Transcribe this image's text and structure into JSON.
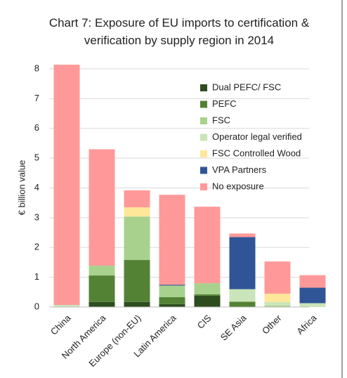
{
  "chart_data": {
    "type": "stacked_bar",
    "title": "Chart 7: Exposure of EU imports to certification & verification by supply region in 2014",
    "ylabel": "€ billion value",
    "categories": [
      "China",
      "North America",
      "Europe (non-EU)",
      "Latin America",
      "CIS",
      "SE Asia",
      "Other",
      "Africa"
    ],
    "series": [
      {
        "name": "Dual PEFC/ FSC",
        "color": "#2e4d1f",
        "values": [
          0,
          0.17,
          0.17,
          0.1,
          0.38,
          0,
          0,
          0
        ]
      },
      {
        "name": "PEFC",
        "color": "#548235",
        "values": [
          0,
          0.89,
          1.41,
          0.23,
          0.05,
          0.18,
          0,
          0
        ]
      },
      {
        "name": "FSC",
        "color": "#a9d18e",
        "values": [
          0,
          0.33,
          1.46,
          0.39,
          0.37,
          0,
          0.05,
          0
        ]
      },
      {
        "name": "Operator legal verified",
        "color": "#c9e5b9",
        "values": [
          0.07,
          0,
          0,
          0,
          0,
          0.42,
          0.12,
          0.13
        ]
      },
      {
        "name": "FSC Controlled Wood",
        "color": "#ffe699",
        "values": [
          0,
          0,
          0.31,
          0,
          0,
          0,
          0.28,
          0
        ]
      },
      {
        "name": "VPA Partners",
        "color": "#2f5597",
        "values": [
          0,
          0,
          0,
          0.03,
          0,
          1.75,
          0,
          0.52
        ]
      },
      {
        "name": "No exposure",
        "color": "#ff9999",
        "values": [
          8.07,
          3.91,
          0.57,
          3.02,
          2.57,
          0.12,
          1.08,
          0.42
        ]
      }
    ],
    "ylim": [
      0,
      8
    ],
    "yticks": [
      0,
      1,
      2,
      3,
      4,
      5,
      6,
      7,
      8
    ],
    "grid": true,
    "legend": "upper right"
  }
}
